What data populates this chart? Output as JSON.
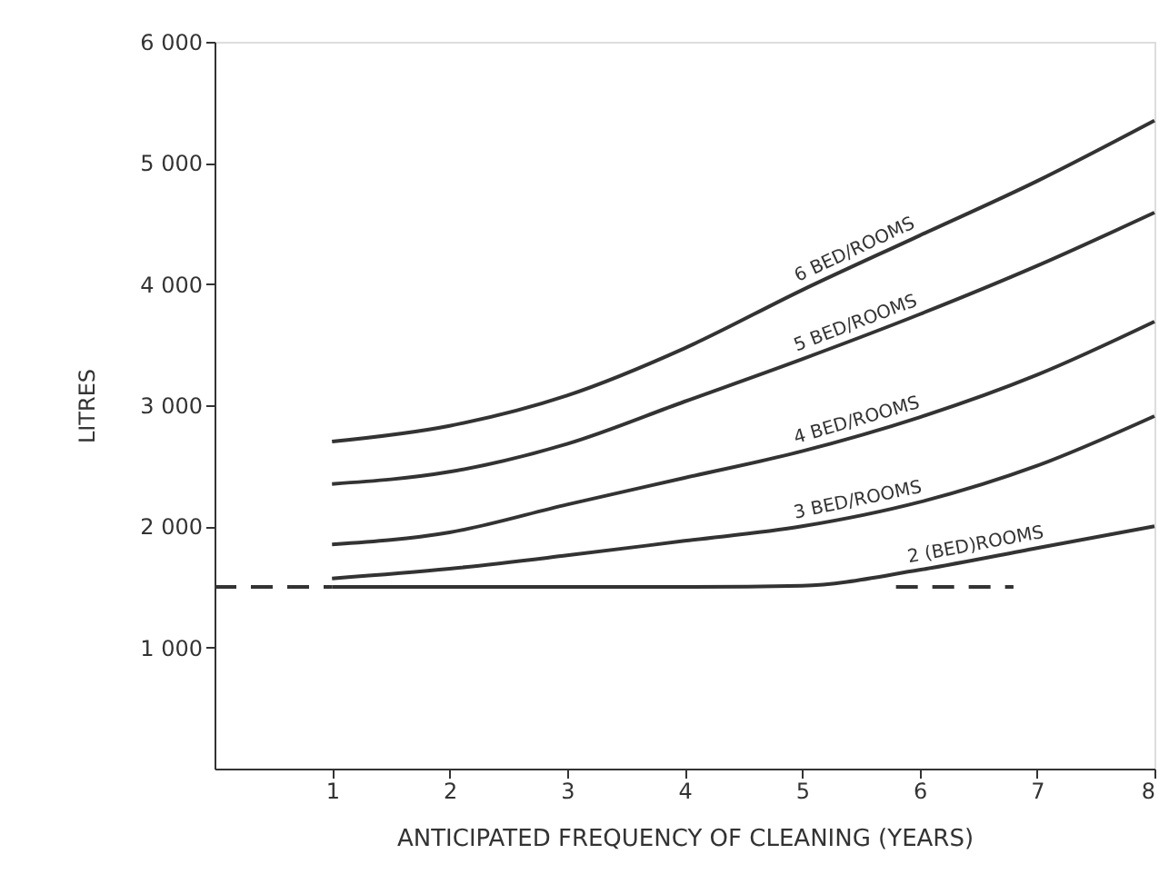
{
  "chart_data": {
    "type": "line",
    "xlabel": "ANTICIPATED FREQUENCY OF CLEANING (YEARS)",
    "ylabel": "LITRES",
    "xlim": [
      0,
      8
    ],
    "xticks": [
      1,
      2,
      3,
      4,
      5,
      6,
      7,
      8
    ],
    "ylim": [
      0,
      6000
    ],
    "yticks": [
      {
        "value": 1000,
        "label": "1 000"
      },
      {
        "value": 2000,
        "label": "2 000"
      },
      {
        "value": 3000,
        "label": "3 000"
      },
      {
        "value": 4000,
        "label": "4 000"
      },
      {
        "value": 5000,
        "label": "5 000"
      },
      {
        "value": 6000,
        "label": "6 000"
      }
    ],
    "grid": false,
    "legend": false,
    "marker": "none",
    "line_style": "solid",
    "x": [
      1,
      2,
      3,
      4,
      5,
      6,
      7,
      8
    ],
    "series": [
      {
        "name": "6 BED/ROOMS",
        "color": "#333333",
        "values": [
          2700,
          2830,
          3080,
          3470,
          3950,
          4400,
          4850,
          5350
        ]
      },
      {
        "name": "5 BED/ROOMS",
        "color": "#333333",
        "values": [
          2350,
          2450,
          2680,
          3030,
          3380,
          3750,
          4150,
          4590
        ]
      },
      {
        "name": "4 BED/ROOMS",
        "color": "#333333",
        "values": [
          1850,
          1950,
          2180,
          2400,
          2620,
          2900,
          3250,
          3690
        ]
      },
      {
        "name": "3 BED/ROOMS",
        "color": "#333333",
        "values": [
          1570,
          1650,
          1760,
          1880,
          2000,
          2200,
          2500,
          2910
        ]
      },
      {
        "name": "2 (BED)ROOMS",
        "color": "#333333",
        "values": [
          1500,
          1500,
          1500,
          1500,
          1510,
          1640,
          1820,
          2000
        ]
      },
      {
        "color": "#333333",
        "line_style": "dashed",
        "x": [
          0,
          1,
          3,
          5.8,
          6.8
        ],
        "values": [
          1500,
          1500,
          null,
          1500,
          1500
        ]
      }
    ]
  }
}
